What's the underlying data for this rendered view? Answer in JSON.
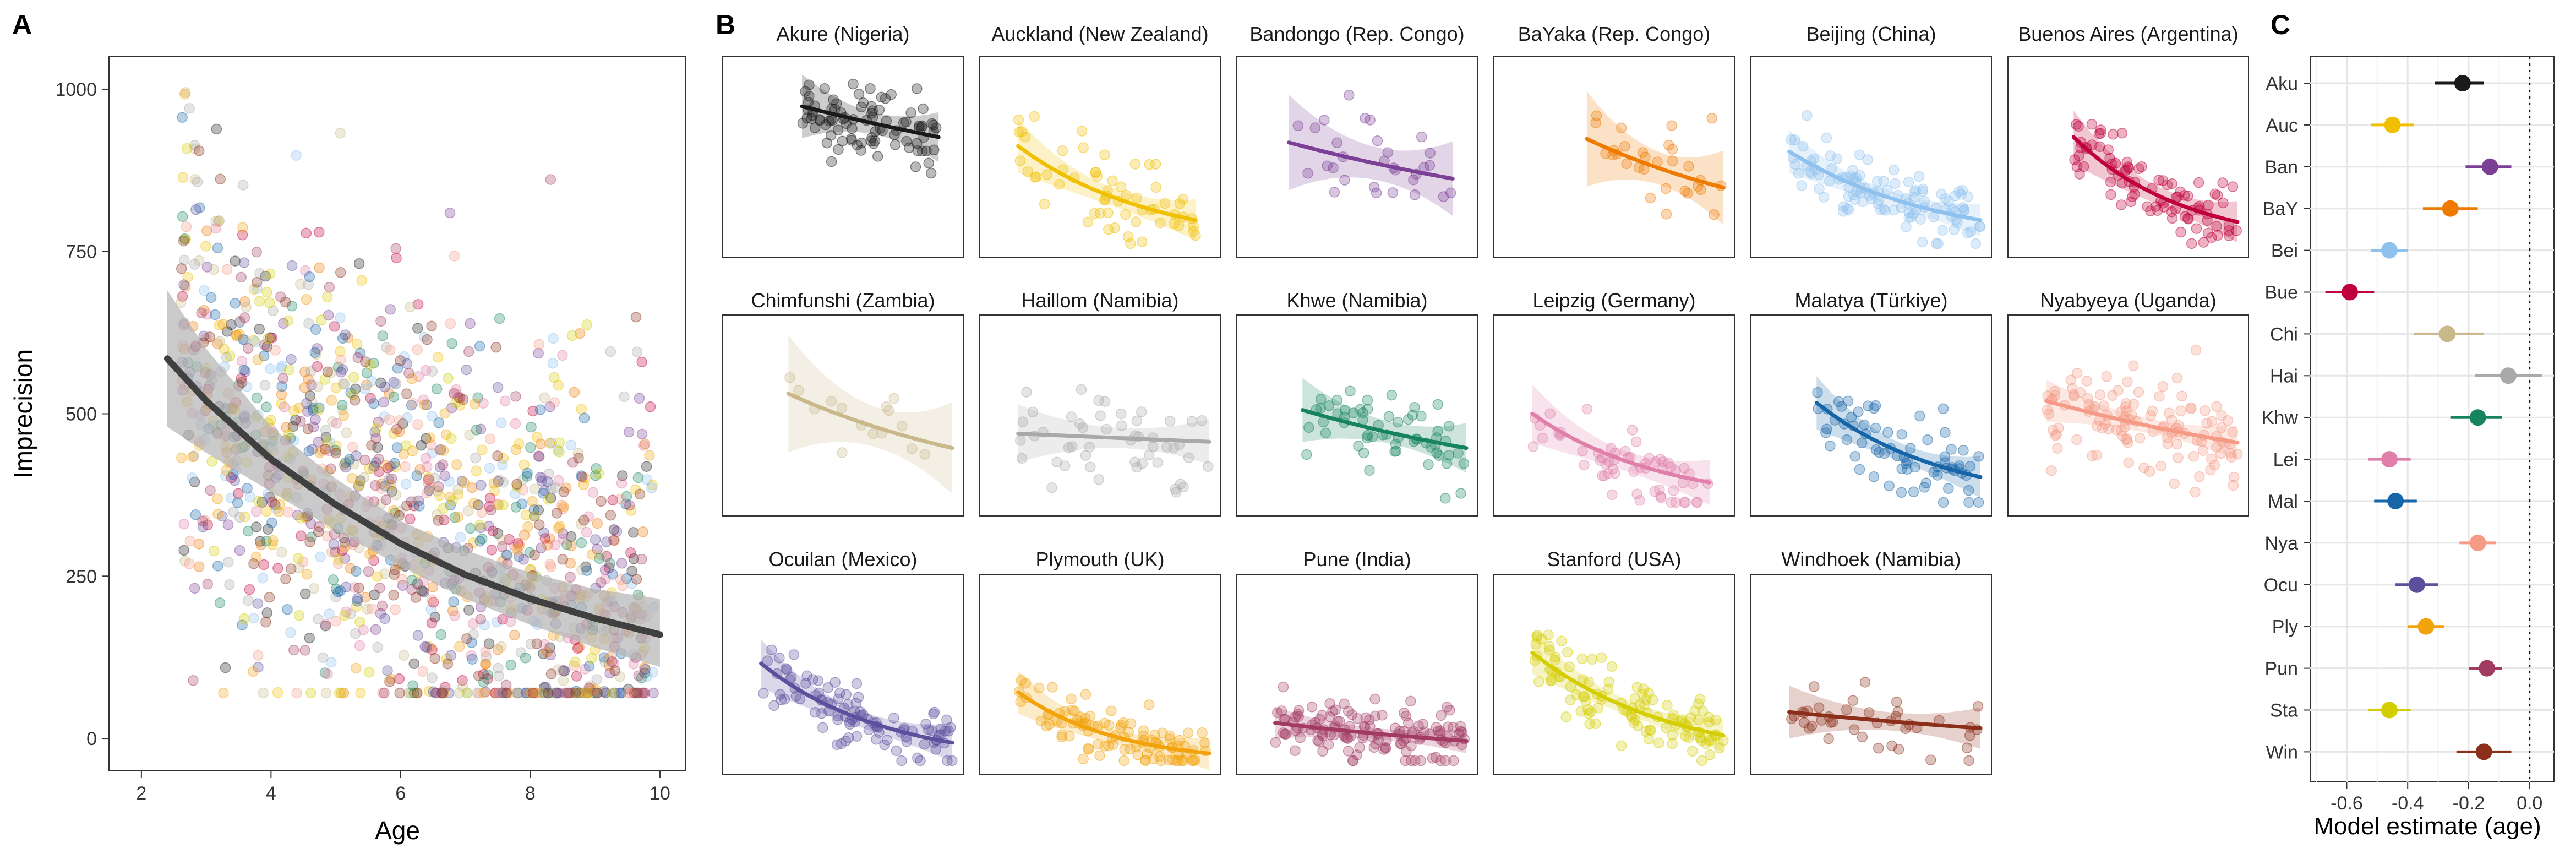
{
  "figure": {
    "panel_labels": [
      "A",
      "B",
      "C"
    ]
  },
  "chart_data": [
    {
      "panel": "A",
      "type": "scatter",
      "xlabel": "Age",
      "ylabel": "Imprecision",
      "xlim": [
        1.5,
        10.4
      ],
      "ylim": [
        -50,
        1050
      ],
      "xticks": [
        2,
        4,
        6,
        8,
        10
      ],
      "yticks": [
        0,
        250,
        500,
        750,
        1000
      ],
      "grid": false,
      "points_per_site": 80,
      "fit": {
        "x": [
          2.4,
          3,
          4,
          5,
          6,
          7,
          8,
          9,
          10
        ],
        "y": [
          585,
          520,
          430,
          360,
          300,
          252,
          215,
          185,
          160
        ]
      },
      "ribbon": {
        "x": [
          2.4,
          3,
          4,
          5,
          6,
          7,
          8,
          9,
          10
        ],
        "lower": [
          480,
          440,
          380,
          320,
          265,
          215,
          175,
          140,
          110
        ],
        "upper": [
          690,
          600,
          480,
          400,
          335,
          290,
          255,
          230,
          215
        ]
      },
      "fit_color": "#404040",
      "ribbon_color": "#b3b3b3"
    },
    {
      "panel": "B",
      "type": "scatter",
      "facet_xlim": [
        2,
        10
      ],
      "facet_ylim": [
        0,
        1000
      ],
      "sites": [
        {
          "name": "Akure (Nigeria)",
          "code": "Aku",
          "color": "#1a1a1a",
          "xr": [
            4.5,
            9.5
          ],
          "fit": [
            780,
            610
          ],
          "sd": 120,
          "n": 90,
          "band": 60
        },
        {
          "name": "Auckland (New Zealand)",
          "code": "Auc",
          "color": "#f0c000",
          "xr": [
            3,
            9.5
          ],
          "fit": [
            560,
            150
          ],
          "sd": 110,
          "n": 60,
          "band": 50
        },
        {
          "name": "Bandongo (Rep. Congo)",
          "code": "Ban",
          "color": "#7b3f95",
          "xr": [
            3.5,
            9.5
          ],
          "fit": [
            580,
            380
          ],
          "sd": 140,
          "n": 30,
          "band": 90
        },
        {
          "name": "BaYaka (Rep. Congo)",
          "code": "BaY",
          "color": "#ee7b00",
          "xr": [
            5,
            10
          ],
          "fit": [
            600,
            330
          ],
          "sd": 120,
          "n": 30,
          "band": 90
        },
        {
          "name": "Beijing (China)",
          "code": "Bei",
          "color": "#8fc1ee",
          "xr": [
            3,
            10
          ],
          "fit": [
            530,
            150
          ],
          "sd": 100,
          "n": 110,
          "band": 40
        },
        {
          "name": "Buenos Aires (Argentina)",
          "code": "Bue",
          "color": "#c0003c",
          "xr": [
            4,
            10
          ],
          "fit": [
            610,
            140
          ],
          "sd": 100,
          "n": 90,
          "band": 50
        },
        {
          "name": "Chimfunshi (Zambia)",
          "code": "Chi",
          "color": "#c8b88a",
          "xr": [
            4,
            10
          ],
          "fit": [
            620,
            320
          ],
          "sd": 130,
          "n": 15,
          "band": 110
        },
        {
          "name": "Haillom (Namibia)",
          "code": "Hai",
          "color": "#a9a9a9",
          "xr": [
            3,
            10
          ],
          "fit": [
            400,
            355
          ],
          "sd": 140,
          "n": 50,
          "band": 55
        },
        {
          "name": "Khwe (Namibia)",
          "code": "Khw",
          "color": "#17845e",
          "xr": [
            4,
            10
          ],
          "fit": [
            530,
            320
          ],
          "sd": 110,
          "n": 60,
          "band": 60
        },
        {
          "name": "Leipzig (Germany)",
          "code": "Lei",
          "color": "#e07faa",
          "xr": [
            3,
            9.5
          ],
          "fit": [
            510,
            130
          ],
          "sd": 100,
          "n": 60,
          "band": 55
        },
        {
          "name": "Malatya (Türkiye)",
          "code": "Mal",
          "color": "#1565a8",
          "xr": [
            4,
            10
          ],
          "fit": [
            570,
            160
          ],
          "sd": 110,
          "n": 70,
          "band": 50
        },
        {
          "name": "Nyabyeya (Uganda)",
          "code": "Nya",
          "color": "#f49a85",
          "xr": [
            3,
            10
          ],
          "fit": [
            580,
            350
          ],
          "sd": 130,
          "n": 120,
          "band": 40
        },
        {
          "name": "Ocuilan (Mexico)",
          "code": "Ocu",
          "color": "#5b4f9e",
          "xr": [
            3,
            10
          ],
          "fit": [
            560,
            120
          ],
          "sd": 100,
          "n": 100,
          "band": 45
        },
        {
          "name": "Plymouth (UK)",
          "code": "Ply",
          "color": "#f2a20a",
          "xr": [
            3,
            10
          ],
          "fit": [
            400,
            60
          ],
          "sd": 70,
          "n": 100,
          "band": 40
        },
        {
          "name": "Pune (India)",
          "code": "Pun",
          "color": "#a23b62",
          "xr": [
            3,
            10
          ],
          "fit": [
            230,
            130
          ],
          "sd": 80,
          "n": 130,
          "band": 30
        },
        {
          "name": "Stanford (USA)",
          "code": "Sta",
          "color": "#d4cd00",
          "xr": [
            3,
            10
          ],
          "fit": [
            620,
            160
          ],
          "sd": 100,
          "n": 110,
          "band": 40
        },
        {
          "name": "Windhoek (Namibia)",
          "code": "Win",
          "color": "#8b2e1a",
          "xr": [
            3,
            10
          ],
          "fit": [
            290,
            200
          ],
          "sd": 100,
          "n": 40,
          "band": 50
        }
      ]
    },
    {
      "panel": "C",
      "type": "scatter",
      "xlabel": "Model estimate (age)",
      "xlim": [
        -0.72,
        0.08
      ],
      "xticks": [
        -0.6,
        -0.4,
        -0.2,
        0.0
      ],
      "xtick_labels": [
        "-0.6",
        "-0.4",
        "-0.2",
        "0.0"
      ],
      "zero_line": "dotted",
      "grid": true,
      "estimates": [
        {
          "site": "Aku",
          "value": -0.22,
          "lo": -0.31,
          "hi": -0.15,
          "color": "#1a1a1a"
        },
        {
          "site": "Auc",
          "value": -0.45,
          "lo": -0.52,
          "hi": -0.38,
          "color": "#f0c000"
        },
        {
          "site": "Ban",
          "value": -0.13,
          "lo": -0.21,
          "hi": -0.06,
          "color": "#7b3f95"
        },
        {
          "site": "BaY",
          "value": -0.26,
          "lo": -0.35,
          "hi": -0.17,
          "color": "#ee7b00"
        },
        {
          "site": "Bei",
          "value": -0.46,
          "lo": -0.52,
          "hi": -0.4,
          "color": "#8fc1ee"
        },
        {
          "site": "Bue",
          "value": -0.59,
          "lo": -0.67,
          "hi": -0.51,
          "color": "#c0003c"
        },
        {
          "site": "Chi",
          "value": -0.27,
          "lo": -0.38,
          "hi": -0.15,
          "color": "#c8b88a"
        },
        {
          "site": "Hai",
          "value": -0.07,
          "lo": -0.18,
          "hi": 0.04,
          "color": "#a9a9a9"
        },
        {
          "site": "Khw",
          "value": -0.17,
          "lo": -0.26,
          "hi": -0.09,
          "color": "#17845e"
        },
        {
          "site": "Lei",
          "value": -0.46,
          "lo": -0.53,
          "hi": -0.39,
          "color": "#e07faa"
        },
        {
          "site": "Mal",
          "value": -0.44,
          "lo": -0.51,
          "hi": -0.37,
          "color": "#1565a8"
        },
        {
          "site": "Nya",
          "value": -0.17,
          "lo": -0.23,
          "hi": -0.11,
          "color": "#f49a85"
        },
        {
          "site": "Ocu",
          "value": -0.37,
          "lo": -0.44,
          "hi": -0.3,
          "color": "#5b4f9e"
        },
        {
          "site": "Ply",
          "value": -0.34,
          "lo": -0.4,
          "hi": -0.28,
          "color": "#f2a20a"
        },
        {
          "site": "Pun",
          "value": -0.14,
          "lo": -0.2,
          "hi": -0.09,
          "color": "#a23b62"
        },
        {
          "site": "Sta",
          "value": -0.46,
          "lo": -0.53,
          "hi": -0.39,
          "color": "#d4cd00"
        },
        {
          "site": "Win",
          "value": -0.15,
          "lo": -0.24,
          "hi": -0.06,
          "color": "#8b2e1a"
        }
      ]
    }
  ]
}
